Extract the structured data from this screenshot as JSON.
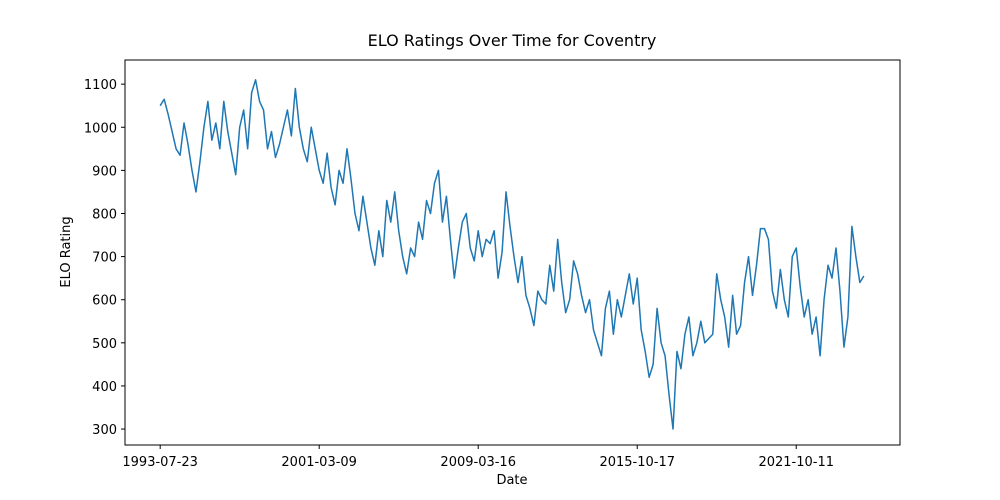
{
  "chart_data": {
    "type": "line",
    "title": "ELO Ratings Over Time for Coventry",
    "xlabel": "Date",
    "ylabel": "ELO Rating",
    "color": "#1f77b4",
    "values": [
      1050,
      1065,
      1030,
      990,
      950,
      935,
      1010,
      960,
      900,
      850,
      920,
      1000,
      1060,
      970,
      1010,
      950,
      1060,
      990,
      940,
      890,
      1000,
      1040,
      950,
      1080,
      1110,
      1060,
      1040,
      950,
      990,
      930,
      960,
      1000,
      1040,
      980,
      1090,
      1000,
      950,
      920,
      1000,
      950,
      900,
      870,
      940,
      860,
      820,
      900,
      870,
      950,
      880,
      800,
      760,
      840,
      780,
      720,
      680,
      760,
      700,
      830,
      780,
      850,
      760,
      700,
      660,
      720,
      700,
      780,
      740,
      830,
      800,
      870,
      900,
      780,
      840,
      740,
      650,
      720,
      780,
      800,
      720,
      690,
      760,
      700,
      740,
      730,
      760,
      650,
      710,
      850,
      770,
      700,
      640,
      700,
      610,
      580,
      540,
      620,
      600,
      590,
      680,
      620,
      740,
      640,
      570,
      600,
      690,
      660,
      610,
      570,
      600,
      530,
      500,
      470,
      580,
      620,
      520,
      600,
      560,
      610,
      660,
      590,
      650,
      530,
      480,
      420,
      450,
      580,
      500,
      470,
      380,
      300,
      480,
      440,
      520,
      560,
      470,
      500,
      550,
      500,
      510,
      520,
      660,
      600,
      560,
      490,
      610,
      520,
      540,
      640,
      700,
      610,
      680,
      765,
      765,
      740,
      620,
      580,
      670,
      600,
      560,
      700,
      720,
      630,
      560,
      600,
      520,
      560,
      470,
      600,
      680,
      650,
      720,
      620,
      490,
      560,
      770,
      700,
      640,
      655
    ],
    "xlim": [
      -8.85,
      186.1
    ],
    "xticks": [
      {
        "value": 0,
        "label": "1993-07-23"
      },
      {
        "value": 40,
        "label": "2001-03-09"
      },
      {
        "value": 80,
        "label": "2009-03-16"
      },
      {
        "value": 120,
        "label": "2015-10-17"
      },
      {
        "value": 160,
        "label": "2021-10-11"
      }
    ],
    "ylim": [
      263,
      1156
    ],
    "yticks": [
      300,
      400,
      500,
      600,
      700,
      800,
      900,
      1000,
      1100
    ]
  }
}
